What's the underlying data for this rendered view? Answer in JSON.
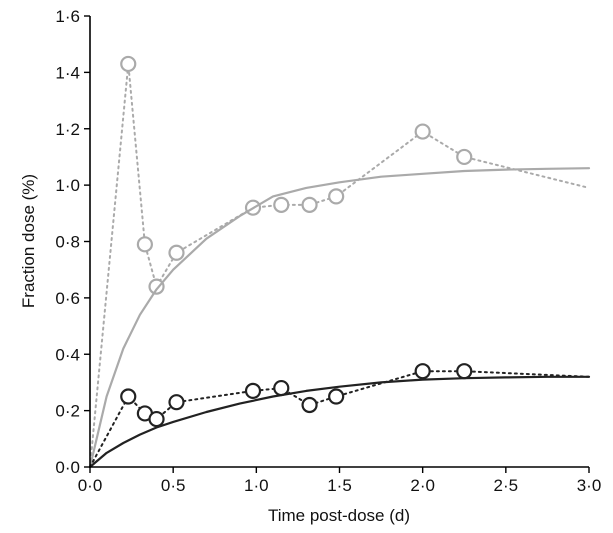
{
  "chart_data": {
    "type": "line",
    "title": "",
    "xlabel": "Time post-dose (d)",
    "ylabel": "Fraction dose (%)",
    "xlim": [
      0,
      3
    ],
    "ylim": [
      0,
      1.6
    ],
    "x_ticks": [
      "0·0",
      "0·5",
      "1·0",
      "1·5",
      "2·0",
      "2·5",
      "3·0"
    ],
    "y_ticks": [
      "0·0",
      "0·2",
      "0·4",
      "0·6",
      "0·8",
      "1·0",
      "1·2",
      "1·4",
      "1·6"
    ],
    "grid": false,
    "series": [
      {
        "color": "#aaaaaa",
        "marker": "open-circle",
        "line_style": "dotted",
        "x": [
          0,
          0.23,
          0.33,
          0.4,
          0.52,
          0.98,
          1.15,
          1.32,
          1.48,
          2.0,
          2.25,
          3.0
        ],
        "y": [
          0,
          1.43,
          0.79,
          0.64,
          0.76,
          0.92,
          0.93,
          0.93,
          0.96,
          1.19,
          1.1,
          0.99
        ],
        "marker_indices": [
          1,
          2,
          3,
          4,
          5,
          6,
          7,
          8,
          9,
          10
        ]
      },
      {
        "color": "#aaaaaa",
        "line_style": "solid",
        "x": [
          0,
          0.1,
          0.2,
          0.3,
          0.4,
          0.5,
          0.7,
          0.9,
          1.1,
          1.3,
          1.5,
          1.75,
          2.0,
          2.25,
          2.5,
          2.75,
          3.0
        ],
        "y": [
          0,
          0.25,
          0.42,
          0.54,
          0.63,
          0.7,
          0.81,
          0.89,
          0.96,
          0.99,
          1.01,
          1.03,
          1.04,
          1.05,
          1.055,
          1.058,
          1.06
        ]
      },
      {
        "color": "#222222",
        "marker": "open-circle",
        "line_style": "dotted",
        "x": [
          0,
          0.23,
          0.33,
          0.4,
          0.52,
          0.98,
          1.15,
          1.32,
          1.48,
          2.0,
          2.25,
          3.0
        ],
        "y": [
          0,
          0.25,
          0.19,
          0.17,
          0.23,
          0.27,
          0.28,
          0.22,
          0.25,
          0.34,
          0.34,
          0.32
        ],
        "marker_indices": [
          1,
          2,
          3,
          4,
          5,
          6,
          7,
          8,
          9,
          10
        ]
      },
      {
        "color": "#222222",
        "line_style": "solid",
        "x": [
          0,
          0.1,
          0.2,
          0.3,
          0.4,
          0.5,
          0.7,
          0.9,
          1.1,
          1.3,
          1.5,
          1.75,
          2.0,
          2.25,
          2.5,
          2.75,
          3.0
        ],
        "y": [
          0,
          0.05,
          0.085,
          0.115,
          0.14,
          0.16,
          0.195,
          0.225,
          0.25,
          0.27,
          0.285,
          0.3,
          0.31,
          0.315,
          0.318,
          0.32,
          0.32
        ]
      }
    ]
  }
}
